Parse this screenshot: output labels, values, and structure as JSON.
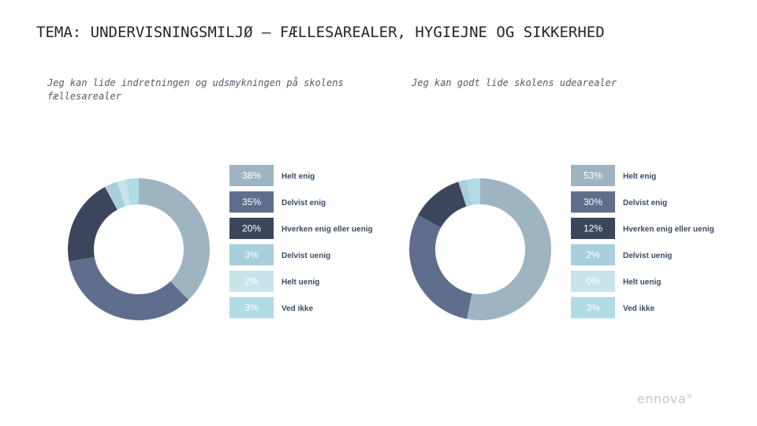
{
  "title": "TEMA: UNDERVISNINGSMILJØ – FÆLLESAREALER, HYGIEJNE OG SIKKERHED",
  "brand": {
    "name": "ennova",
    "mark": "®"
  },
  "colors": [
    "#9eb4c0",
    "#5f6e8c",
    "#3b465c",
    "#a8cfdb",
    "#c8e3ea",
    "#b0dbe5"
  ],
  "chart_data": [
    {
      "type": "pie",
      "title": "Jeg kan lide indretningen og udsmykningen på skolens fællesarealer",
      "labels": [
        "Helt enig",
        "Delvist enig",
        "Hverken enig eller uenig",
        "Delvist uenig",
        "Helt uenig",
        "Ved ikke"
      ],
      "values": [
        38,
        35,
        20,
        3,
        2,
        3
      ],
      "value_labels": [
        "38%",
        "35%",
        "20%",
        "3%",
        "2%",
        "3%"
      ],
      "legend": "right"
    },
    {
      "type": "pie",
      "title": "Jeg kan godt lide skolens udearealer",
      "labels": [
        "Helt enig",
        "Delvist enig",
        "Hverken enig eller uenig",
        "Delvist uenig",
        "Helt uenig",
        "Ved ikke"
      ],
      "values": [
        53,
        30,
        12,
        2,
        0,
        3
      ],
      "value_labels": [
        "53%",
        "30%",
        "12%",
        "2%",
        "0%",
        "3%"
      ],
      "legend": "right"
    }
  ]
}
